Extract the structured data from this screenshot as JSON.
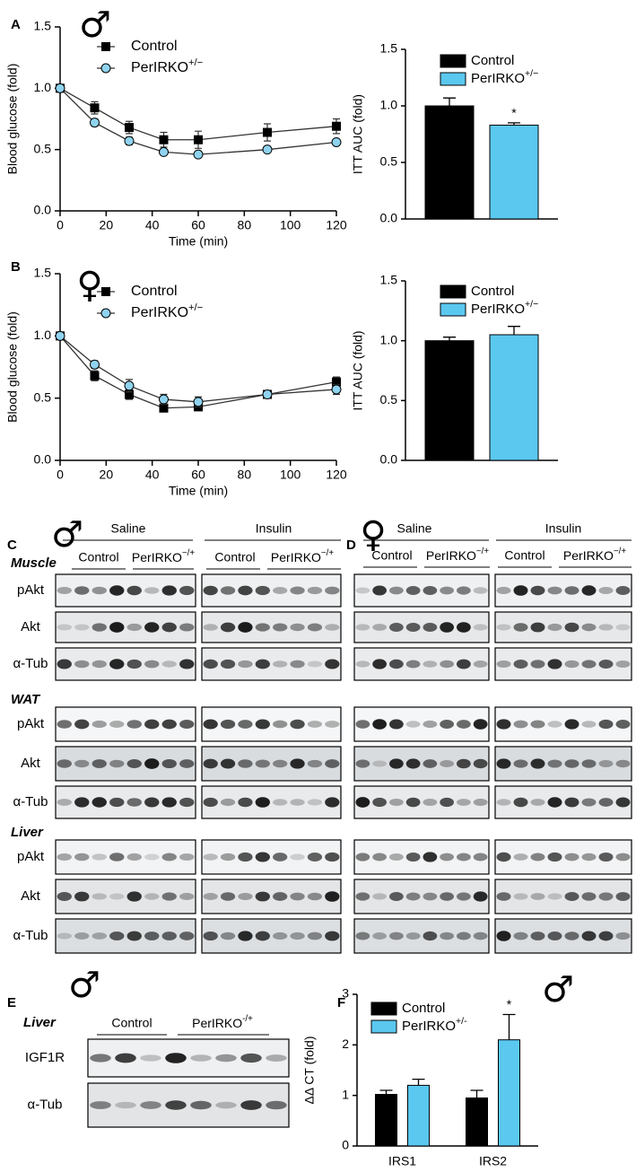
{
  "chart_data": [
    {
      "type": "line",
      "panel": "A",
      "symbol": "♂",
      "x_label": "Time (min)",
      "y_label": "Blood glucose (fold)",
      "x": [
        0,
        15,
        30,
        45,
        60,
        90,
        120
      ],
      "series": [
        {
          "name": "Control",
          "color": "#000000",
          "marker": "square",
          "values": [
            1.0,
            0.84,
            0.68,
            0.58,
            0.58,
            0.64,
            0.69
          ],
          "errors": [
            0.02,
            0.05,
            0.05,
            0.06,
            0.07,
            0.07,
            0.06
          ]
        },
        {
          "name": "PerIRKO+/−",
          "color": "#8fd3ef",
          "marker": "circle",
          "values": [
            1.0,
            0.72,
            0.57,
            0.48,
            0.46,
            0.5,
            0.56
          ],
          "errors": [
            0.02,
            0.03,
            0.03,
            0.02,
            0.02,
            0.02,
            0.02
          ]
        }
      ],
      "xlim": [
        0,
        120
      ],
      "xticks": [
        0,
        20,
        40,
        60,
        80,
        100,
        120
      ],
      "ylim": [
        0,
        1.5
      ],
      "yticks": [
        {
          "value": 0,
          "label": "0.0"
        },
        0.5,
        {
          "value": 1,
          "label": "1.0"
        },
        1.5
      ]
    },
    {
      "type": "bar",
      "y_label": "ITT AUC (fold)",
      "annotation": "*",
      "series": [
        {
          "name": "Control",
          "color": "#000000",
          "values": [
            1.0
          ],
          "errors": [
            0.07
          ]
        },
        {
          "name": "PerIRKO+/−",
          "color": "#5bc8f0",
          "values": [
            0.83
          ],
          "errors": [
            0.02
          ]
        }
      ],
      "ylim": [
        0,
        1.5
      ],
      "yticks": [
        {
          "value": 0,
          "label": "0.0"
        },
        0.5,
        {
          "value": 1,
          "label": "1.0"
        },
        1.5
      ]
    },
    {
      "type": "line",
      "panel": "B",
      "symbol": "♀",
      "x_label": "Time (min)",
      "y_label": "Blood glucose (fold)",
      "x": [
        0,
        15,
        30,
        45,
        60,
        90,
        120
      ],
      "series": [
        {
          "name": "Control",
          "color": "#000000",
          "marker": "square",
          "values": [
            1.0,
            0.68,
            0.53,
            0.42,
            0.43,
            0.53,
            0.63
          ],
          "errors": [
            0.02,
            0.04,
            0.04,
            0.03,
            0.03,
            0.03,
            0.04
          ]
        },
        {
          "name": "PerIRKO+/−",
          "color": "#8fd3ef",
          "marker": "circle",
          "values": [
            1.0,
            0.77,
            0.6,
            0.49,
            0.47,
            0.53,
            0.57
          ],
          "errors": [
            0.02,
            0.03,
            0.05,
            0.04,
            0.04,
            0.02,
            0.04
          ]
        }
      ],
      "xlim": [
        0,
        120
      ],
      "xticks": [
        0,
        20,
        40,
        60,
        80,
        100,
        120
      ],
      "ylim": [
        0,
        1.5
      ],
      "yticks": [
        {
          "value": 0,
          "label": "0.0"
        },
        0.5,
        {
          "value": 1,
          "label": "1.0"
        },
        1.5
      ]
    },
    {
      "type": "bar",
      "y_label": "ITT AUC (fold)",
      "series": [
        {
          "name": "Control",
          "color": "#000000",
          "values": [
            1.0
          ],
          "errors": [
            0.03
          ]
        },
        {
          "name": "PerIRKO+/−",
          "color": "#5bc8f0",
          "values": [
            1.05
          ],
          "errors": [
            0.07
          ]
        }
      ],
      "ylim": [
        0,
        1.5
      ],
      "yticks": [
        {
          "value": 0,
          "label": "0.0"
        },
        0.5,
        {
          "value": 1,
          "label": "1.0"
        },
        1.5
      ]
    },
    {
      "type": "bar",
      "panel": "F",
      "symbol": "♂",
      "y_label": "ΔΔ CT (fold)",
      "annotation": "*",
      "categories": [
        "IRS1",
        "IRS2"
      ],
      "series": [
        {
          "name": "Control",
          "color": "#000000",
          "values": [
            1.02,
            0.95
          ],
          "errors": [
            0.08,
            0.15
          ]
        },
        {
          "name": "PerIRKO+/-",
          "color": "#5bc8f0",
          "values": [
            1.2,
            2.1
          ],
          "errors": [
            0.12,
            0.5
          ]
        }
      ],
      "ylim": [
        0,
        3
      ],
      "yticks": [
        0,
        1,
        2,
        3
      ]
    }
  ],
  "blots": {
    "C": {
      "panel": "C",
      "symbol": "♂",
      "conditions": [
        "Saline",
        "Insulin"
      ],
      "groups": [
        "Control",
        "PerIRKO−/+"
      ],
      "tissues": [
        {
          "name": "Muscle",
          "rows": [
            "pAkt",
            "Akt",
            "α-Tub"
          ]
        },
        {
          "name": "WAT",
          "rows": [
            "pAkt",
            "Akt",
            "α-Tub"
          ]
        },
        {
          "name": "Liver",
          "rows": [
            "pAkt",
            "Akt",
            "α-Tub"
          ]
        }
      ]
    },
    "D": {
      "panel": "D",
      "symbol": "♀",
      "conditions": [
        "Saline",
        "Insulin"
      ],
      "groups": [
        "Control",
        "PerIRKO−/+"
      ]
    },
    "E": {
      "panel": "E",
      "symbol": "♂",
      "tissue": "Liver",
      "groups": [
        "Control",
        "PerIRKO-/+"
      ],
      "rows": [
        "IGF1R",
        "α-Tub"
      ]
    }
  }
}
